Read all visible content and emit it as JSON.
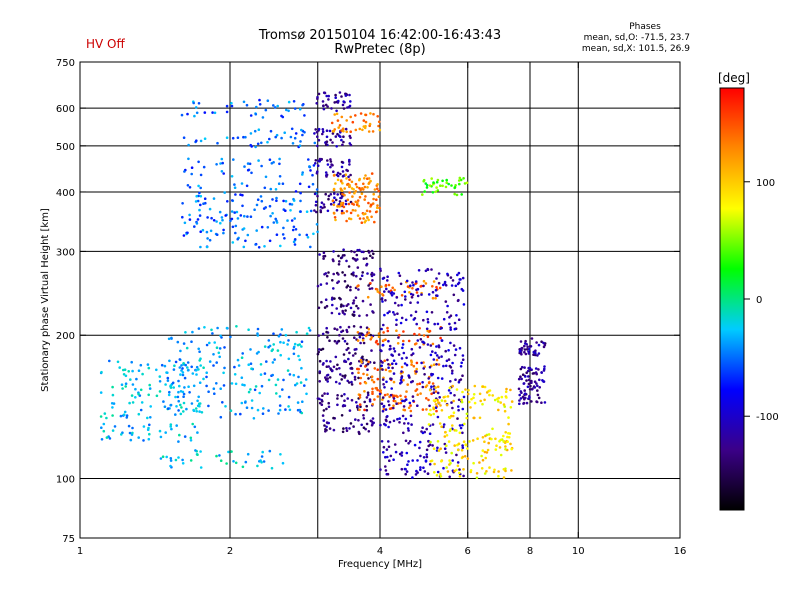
{
  "status": {
    "hv": "HV Off"
  },
  "header": {
    "title_line1": "Tromsø 20150104 16:42:00-16:43:43",
    "title_line2": "RwPretec (8p)"
  },
  "phase_box": {
    "title": "Phases",
    "o_stats": "mean, sd,O: -71.5, 23.7",
    "x_stats": "mean, sd,X: 101.5, 26.9"
  },
  "chart_data": {
    "type": "scatter",
    "xlabel": "Frequency [MHz]",
    "ylabel": "Stationary phase Virtual Height [km]",
    "x_scale": "log",
    "y_scale": "log",
    "xlim": [
      1,
      16
    ],
    "ylim": [
      75,
      750
    ],
    "x_ticks": [
      1,
      2,
      4,
      6,
      8,
      10,
      16
    ],
    "x_grid": [
      2,
      3,
      4,
      6,
      8,
      10
    ],
    "y_ticks": [
      75,
      100,
      200,
      300,
      400,
      500,
      600,
      750
    ],
    "y_grid": [
      100,
      200,
      300,
      400,
      500,
      600
    ],
    "grid": true,
    "colorbar": {
      "label": "[deg]",
      "range": [
        -180,
        180
      ],
      "ticks": [
        100,
        0,
        -100
      ],
      "colors": [
        "#000000",
        "#3b0088",
        "#0000ff",
        "#00ccff",
        "#00ff00",
        "#ffff00",
        "#ff8800",
        "#ff0000"
      ]
    },
    "traces": [
      {
        "name": "",
        "x_range": [
          1.1,
          1.75
        ],
        "heights": [
          170,
          155,
          140,
          125
        ],
        "phase": -30
      },
      {
        "name": "",
        "x_range": [
          1.5,
          2.9
        ],
        "heights": [
          200,
          185,
          170,
          155,
          140
        ],
        "phase": -35
      },
      {
        "name": "",
        "x_range": [
          1.45,
          2.6
        ],
        "heights": [
          110
        ],
        "phase": -25
      },
      {
        "name": "",
        "x_range": [
          1.6,
          3.0
        ],
        "heights": [
          320,
          340,
          370,
          400,
          450,
          520,
          600
        ],
        "phase": -50
      },
      {
        "name": "",
        "x_range": [
          2.95,
          3.5
        ],
        "heights": [
          380,
          450,
          520,
          620
        ],
        "phase": -120
      },
      {
        "name": "",
        "x_range": [
          3.0,
          3.9
        ],
        "heights": [
          290,
          260,
          230,
          200,
          180,
          165,
          145,
          130
        ],
        "phase": -130
      },
      {
        "name": "",
        "x_range": [
          3.2,
          4.0
        ],
        "heights": [
          360,
          390,
          420,
          560
        ],
        "phase": 130
      },
      {
        "name": "",
        "x_range": [
          3.6,
          5.3
        ],
        "heights": [
          250,
          200,
          170,
          155,
          145
        ],
        "phase": 140
      },
      {
        "name": "",
        "x_range": [
          4.0,
          5.9
        ],
        "heights": [
          265,
          240,
          215,
          190,
          175,
          160,
          145,
          130,
          115,
          105
        ],
        "phase": -110
      },
      {
        "name": "",
        "x_range": [
          5.0,
          7.4
        ],
        "heights": [
          150,
          140,
          125,
          115,
          105
        ],
        "phase": 90
      },
      {
        "name": "",
        "x_range": [
          4.8,
          6.0
        ],
        "heights": [
          410
        ],
        "phase": 40
      },
      {
        "name": "",
        "x_range": [
          7.6,
          8.6
        ],
        "heights": [
          190,
          165,
          150
        ],
        "phase": -120
      }
    ]
  }
}
